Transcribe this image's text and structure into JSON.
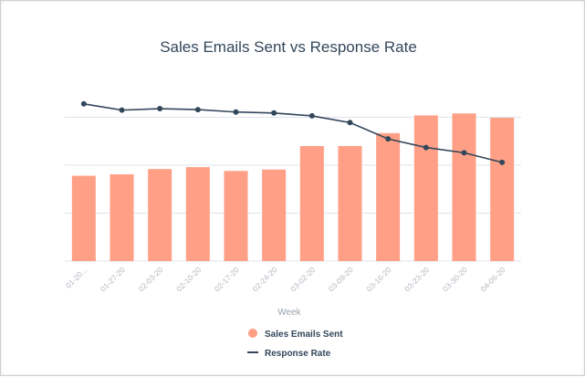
{
  "chart_data": {
    "type": "bar+line",
    "title": "Sales Emails Sent vs Response Rate",
    "xlabel": "Week",
    "ylabel": "",
    "categories": [
      "01-20...",
      "01-27-20",
      "02-03-20",
      "02-10-20",
      "02-17-20",
      "02-24-20",
      "03-02-20",
      "03-09-20",
      "03-16-20",
      "03-23-20",
      "03-30-20",
      "04-06-20"
    ],
    "y_axis_ticks_shown": false,
    "grid": true,
    "legend_position": "bottom",
    "colors": {
      "bars": "#ff9f86",
      "line": "#33475b",
      "grid": "#dfe3eb",
      "title": "#33475b"
    },
    "series": [
      {
        "name": "Sales Emails Sent",
        "kind": "bar",
        "values": [
          1.78,
          1.81,
          1.92,
          1.96,
          1.88,
          1.91,
          2.4,
          2.4,
          2.67,
          3.04,
          3.08,
          2.99
        ],
        "ylim": [
          0,
          4
        ]
      },
      {
        "name": "Response Rate",
        "kind": "line",
        "values": [
          3.28,
          3.15,
          3.18,
          3.16,
          3.11,
          3.09,
          3.03,
          2.89,
          2.55,
          2.37,
          2.26,
          2.06
        ],
        "ylim": [
          0,
          4
        ]
      }
    ]
  }
}
